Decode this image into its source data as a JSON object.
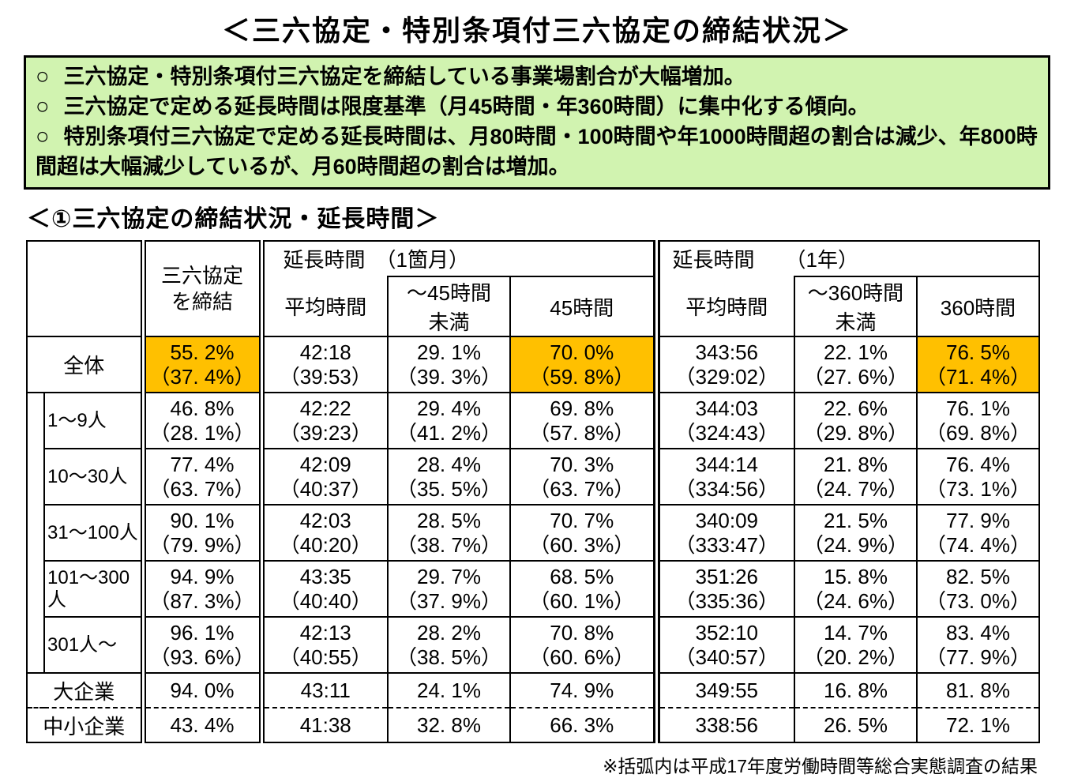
{
  "page": {
    "title": "＜三六協定・特別条項付三六協定の締結状況＞",
    "footnote": "※括弧内は平成17年度労働時間等総合実態調査の結果"
  },
  "summary_box": {
    "marker": "○",
    "bg_color": "#d1f3b0",
    "bullets": [
      "三六協定・特別条項付三六協定を締結している事業場割合が大幅増加。",
      "三六協定で定める延長時間は限度基準（月45時間・年360時間）に集中化する傾向。",
      "特別条項付三六協定で定める延長時間は、月80時間・100時間や年1000時間超の割合は減少、年800時間超は大幅減少しているが、月60時間超の割合は増加。"
    ]
  },
  "section_heading": "＜①三六協定の締結状況・延長時間＞",
  "table": {
    "highlight_color": "#FFC000",
    "header": {
      "col_agreement": "三六協定\nを締結",
      "group_month": "延長時間　（1箇月）",
      "group_year": "延長時間　　（1年）",
      "avg": "平均時間",
      "under45": "～45時間\n未満",
      "h45": "45時間",
      "under360": "～360時間\n未満",
      "h360": "360時間"
    },
    "rows": [
      {
        "label": "全体",
        "type": "total",
        "cells": [
          {
            "main": "55. 2%",
            "sub": "（37. 4%）",
            "hl": true
          },
          {
            "main": "42:18",
            "sub": "（39:53）"
          },
          {
            "main": "29. 1%",
            "sub": "（39. 3%）"
          },
          {
            "main": "70. 0%",
            "sub": "（59. 8%）",
            "hl": true
          },
          {
            "main": "343:56",
            "sub": "（329:02）"
          },
          {
            "main": "22. 1%",
            "sub": "（27. 6%）"
          },
          {
            "main": "76. 5%",
            "sub": "（71. 4%）",
            "hl": true
          }
        ]
      },
      {
        "label": "1～9人",
        "type": "size",
        "cells": [
          {
            "main": "46. 8%",
            "sub": "（28. 1%）"
          },
          {
            "main": "42:22",
            "sub": "（39:23）"
          },
          {
            "main": "29. 4%",
            "sub": "（41. 2%）"
          },
          {
            "main": "69. 8%",
            "sub": "（57. 8%）"
          },
          {
            "main": "344:03",
            "sub": "（324:43）"
          },
          {
            "main": "22. 6%",
            "sub": "（29. 8%）"
          },
          {
            "main": "76. 1%",
            "sub": "（69. 8%）"
          }
        ]
      },
      {
        "label": "10～30人",
        "type": "size",
        "cells": [
          {
            "main": "77. 4%",
            "sub": "（63. 7%）"
          },
          {
            "main": "42:09",
            "sub": "（40:37）"
          },
          {
            "main": "28. 4%",
            "sub": "（35. 5%）"
          },
          {
            "main": "70. 3%",
            "sub": "（63. 7%）"
          },
          {
            "main": "344:14",
            "sub": "（334:56）"
          },
          {
            "main": "21. 8%",
            "sub": "（24. 7%）"
          },
          {
            "main": "76. 4%",
            "sub": "（73. 1%）"
          }
        ]
      },
      {
        "label": "31～100人",
        "type": "size",
        "cells": [
          {
            "main": "90. 1%",
            "sub": "（79. 9%）"
          },
          {
            "main": "42:03",
            "sub": "（40:20）"
          },
          {
            "main": "28. 5%",
            "sub": "（38. 7%）"
          },
          {
            "main": "70. 7%",
            "sub": "（60. 3%）"
          },
          {
            "main": "340:09",
            "sub": "（333:47）"
          },
          {
            "main": "21. 5%",
            "sub": "（24. 9%）"
          },
          {
            "main": "77. 9%",
            "sub": "（74. 4%）"
          }
        ]
      },
      {
        "label": "101～300人",
        "type": "size",
        "cells": [
          {
            "main": "94. 9%",
            "sub": "（87. 3%）"
          },
          {
            "main": "43:35",
            "sub": "（40:40）"
          },
          {
            "main": "29. 7%",
            "sub": "（37. 9%）"
          },
          {
            "main": "68. 5%",
            "sub": "（60. 1%）"
          },
          {
            "main": "351:26",
            "sub": "（335:36）"
          },
          {
            "main": "15. 8%",
            "sub": "（24. 6%）"
          },
          {
            "main": "82. 5%",
            "sub": "（73. 0%）"
          }
        ]
      },
      {
        "label": "301人～",
        "type": "size",
        "cells": [
          {
            "main": "96. 1%",
            "sub": "（93. 6%）"
          },
          {
            "main": "42:13",
            "sub": "（40:55）"
          },
          {
            "main": "28. 2%",
            "sub": "（38. 5%）"
          },
          {
            "main": "70. 8%",
            "sub": "（60. 6%）"
          },
          {
            "main": "352:10",
            "sub": "（340:57）"
          },
          {
            "main": "14. 7%",
            "sub": "（20. 2%）"
          },
          {
            "main": "83. 4%",
            "sub": "（77. 9%）"
          }
        ]
      },
      {
        "label": "大企業",
        "type": "company",
        "border_bottom": "none",
        "cells": [
          {
            "main": "94. 0%"
          },
          {
            "main": "43:11"
          },
          {
            "main": "24. 1%"
          },
          {
            "main": "74. 9%"
          },
          {
            "main": "349:55"
          },
          {
            "main": "16. 8%"
          },
          {
            "main": "81. 8%"
          }
        ]
      },
      {
        "label": "中小企業",
        "type": "company",
        "border_top": "dashed",
        "cells": [
          {
            "main": "43. 4%"
          },
          {
            "main": "41:38"
          },
          {
            "main": "32. 8%"
          },
          {
            "main": "66. 3%"
          },
          {
            "main": "338:56"
          },
          {
            "main": "26. 5%"
          },
          {
            "main": "72. 1%"
          }
        ]
      }
    ]
  }
}
